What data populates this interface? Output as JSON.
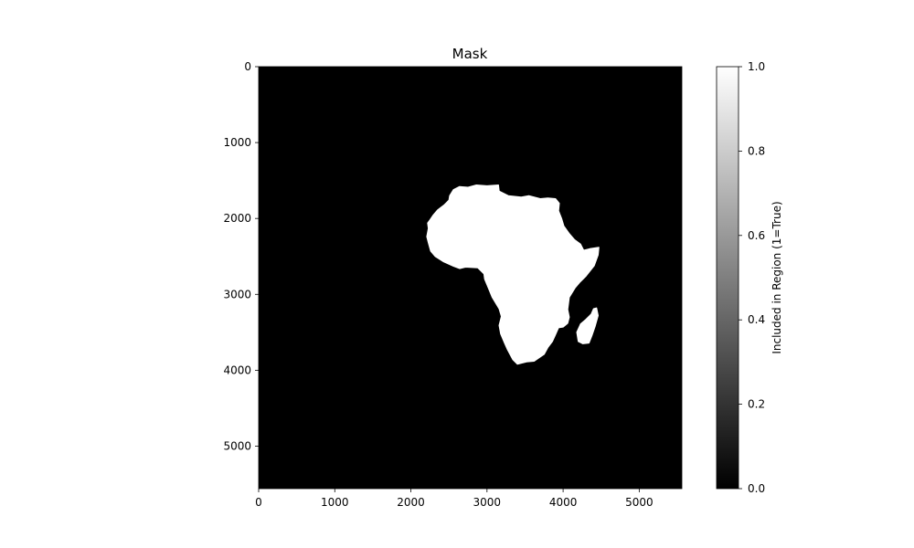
{
  "chart_data": {
    "type": "heatmap",
    "title": "Mask",
    "xlabel": "",
    "ylabel": "",
    "xlim": [
      0,
      5560
    ],
    "ylim": [
      5560,
      0
    ],
    "x_ticks": [
      0,
      1000,
      2000,
      3000,
      4000,
      5000
    ],
    "y_ticks": [
      0,
      1000,
      2000,
      3000,
      4000,
      5000
    ],
    "grid": false,
    "colormap": "gray",
    "mask_background_color": "#000000",
    "mask_region_color": "#ffffff",
    "colorbar": {
      "label": "Included in Region (1=True)",
      "range": [
        0,
        1
      ],
      "ticks": [
        "0.0",
        "0.2",
        "0.4",
        "0.6",
        "0.8",
        "1.0"
      ],
      "tick_values": [
        0,
        0.2,
        0.4,
        0.6,
        0.8,
        1.0
      ]
    },
    "regions": [
      {
        "value": 1,
        "outline": [
          [
            3000,
            1570
          ],
          [
            3150,
            1560
          ],
          [
            3160,
            1640
          ],
          [
            3280,
            1700
          ],
          [
            3450,
            1720
          ],
          [
            3550,
            1700
          ],
          [
            3700,
            1740
          ],
          [
            3800,
            1730
          ],
          [
            3900,
            1740
          ],
          [
            3950,
            1800
          ],
          [
            3940,
            1900
          ],
          [
            3980,
            2000
          ],
          [
            4010,
            2100
          ],
          [
            4080,
            2200
          ],
          [
            4150,
            2280
          ],
          [
            4230,
            2340
          ],
          [
            4270,
            2420
          ],
          [
            4350,
            2400
          ],
          [
            4470,
            2380
          ],
          [
            4460,
            2480
          ],
          [
            4410,
            2620
          ],
          [
            4300,
            2760
          ],
          [
            4220,
            2840
          ],
          [
            4160,
            2910
          ],
          [
            4080,
            3040
          ],
          [
            4060,
            3200
          ],
          [
            4080,
            3300
          ],
          [
            4060,
            3380
          ],
          [
            4000,
            3430
          ],
          [
            3940,
            3440
          ],
          [
            3900,
            3530
          ],
          [
            3860,
            3620
          ],
          [
            3800,
            3700
          ],
          [
            3750,
            3790
          ],
          [
            3620,
            3880
          ],
          [
            3520,
            3890
          ],
          [
            3400,
            3920
          ],
          [
            3340,
            3860
          ],
          [
            3270,
            3730
          ],
          [
            3230,
            3640
          ],
          [
            3180,
            3520
          ],
          [
            3160,
            3410
          ],
          [
            3190,
            3290
          ],
          [
            3160,
            3190
          ],
          [
            3070,
            3040
          ],
          [
            3020,
            2920
          ],
          [
            2970,
            2800
          ],
          [
            2960,
            2730
          ],
          [
            2880,
            2650
          ],
          [
            2720,
            2640
          ],
          [
            2640,
            2660
          ],
          [
            2560,
            2630
          ],
          [
            2430,
            2570
          ],
          [
            2320,
            2500
          ],
          [
            2260,
            2430
          ],
          [
            2230,
            2320
          ],
          [
            2210,
            2240
          ],
          [
            2230,
            2130
          ],
          [
            2220,
            2060
          ],
          [
            2250,
            2020
          ],
          [
            2290,
            1960
          ],
          [
            2350,
            1890
          ],
          [
            2440,
            1820
          ],
          [
            2500,
            1760
          ],
          [
            2510,
            1700
          ],
          [
            2560,
            1620
          ],
          [
            2640,
            1580
          ],
          [
            2750,
            1590
          ],
          [
            2860,
            1560
          ]
        ]
      },
      {
        "value": 1,
        "outline": [
          [
            4440,
            3180
          ],
          [
            4460,
            3280
          ],
          [
            4420,
            3420
          ],
          [
            4380,
            3540
          ],
          [
            4340,
            3640
          ],
          [
            4260,
            3650
          ],
          [
            4200,
            3620
          ],
          [
            4180,
            3500
          ],
          [
            4230,
            3390
          ],
          [
            4300,
            3330
          ],
          [
            4370,
            3260
          ],
          [
            4400,
            3190
          ]
        ]
      }
    ]
  }
}
